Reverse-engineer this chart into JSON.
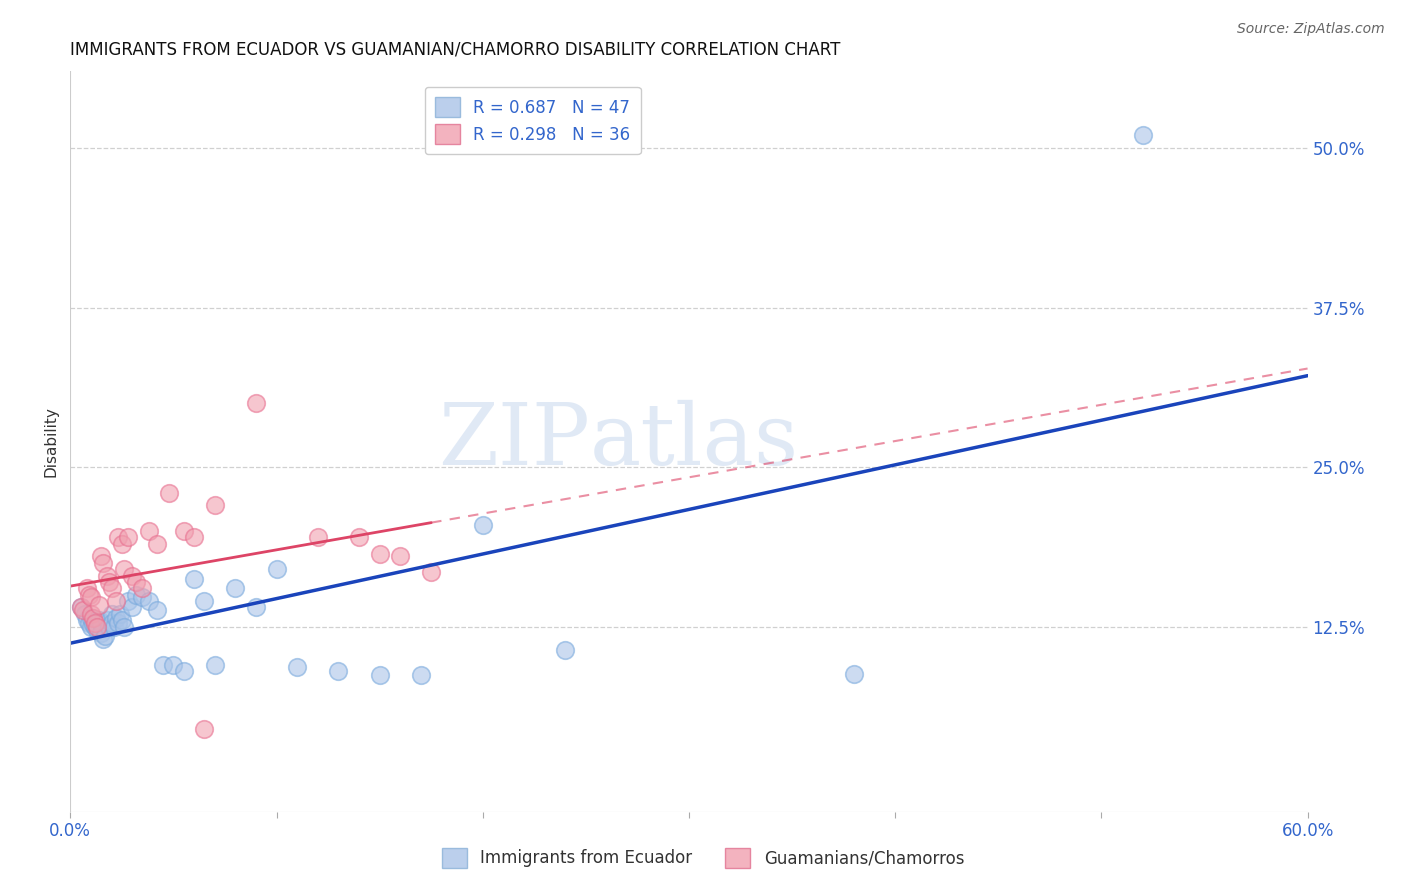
{
  "title": "IMMIGRANTS FROM ECUADOR VS GUAMANIAN/CHAMORRO DISABILITY CORRELATION CHART",
  "source": "Source: ZipAtlas.com",
  "ylabel": "Disability",
  "xlim": [
    0.0,
    0.6
  ],
  "ylim": [
    -0.02,
    0.56
  ],
  "xticks": [
    0.0,
    0.1,
    0.2,
    0.3,
    0.4,
    0.5,
    0.6
  ],
  "xticklabels": [
    "0.0%",
    "",
    "",
    "",
    "",
    "",
    "60.0%"
  ],
  "ytick_positions": [
    0.125,
    0.25,
    0.375,
    0.5
  ],
  "ytick_labels": [
    "12.5%",
    "25.0%",
    "37.5%",
    "50.0%"
  ],
  "grid_color": "#d0d0d0",
  "background_color": "#ffffff",
  "blue_R": 0.687,
  "blue_N": 47,
  "pink_R": 0.298,
  "pink_N": 36,
  "blue_color": "#aac4e8",
  "pink_color": "#f0a0b0",
  "blue_edge_color": "#7aaadd",
  "pink_edge_color": "#e87090",
  "blue_line_color": "#1a44bb",
  "pink_line_color": "#dd4466",
  "legend_label_blue": "Immigrants from Ecuador",
  "legend_label_pink": "Guamanians/Chamorros",
  "watermark": "ZIPatlas",
  "blue_x": [
    0.005,
    0.007,
    0.008,
    0.009,
    0.01,
    0.01,
    0.011,
    0.012,
    0.013,
    0.014,
    0.015,
    0.015,
    0.016,
    0.017,
    0.018,
    0.019,
    0.02,
    0.02,
    0.021,
    0.022,
    0.023,
    0.024,
    0.025,
    0.026,
    0.028,
    0.03,
    0.032,
    0.035,
    0.038,
    0.042,
    0.045,
    0.05,
    0.055,
    0.06,
    0.065,
    0.07,
    0.08,
    0.09,
    0.1,
    0.11,
    0.13,
    0.15,
    0.17,
    0.2,
    0.24,
    0.38,
    0.52
  ],
  "blue_y": [
    0.14,
    0.135,
    0.13,
    0.128,
    0.125,
    0.132,
    0.127,
    0.125,
    0.122,
    0.13,
    0.128,
    0.12,
    0.115,
    0.118,
    0.13,
    0.125,
    0.135,
    0.128,
    0.125,
    0.132,
    0.128,
    0.135,
    0.13,
    0.125,
    0.145,
    0.14,
    0.15,
    0.148,
    0.145,
    0.138,
    0.095,
    0.095,
    0.09,
    0.162,
    0.145,
    0.095,
    0.155,
    0.14,
    0.17,
    0.093,
    0.09,
    0.087,
    0.087,
    0.205,
    0.107,
    0.088,
    0.51
  ],
  "pink_x": [
    0.005,
    0.006,
    0.008,
    0.009,
    0.01,
    0.01,
    0.011,
    0.012,
    0.013,
    0.014,
    0.015,
    0.016,
    0.018,
    0.019,
    0.02,
    0.022,
    0.023,
    0.025,
    0.026,
    0.028,
    0.03,
    0.032,
    0.035,
    0.038,
    0.042,
    0.048,
    0.055,
    0.06,
    0.065,
    0.07,
    0.09,
    0.12,
    0.14,
    0.15,
    0.16,
    0.175
  ],
  "pink_y": [
    0.14,
    0.138,
    0.155,
    0.15,
    0.148,
    0.135,
    0.132,
    0.128,
    0.125,
    0.142,
    0.18,
    0.175,
    0.165,
    0.16,
    0.155,
    0.145,
    0.195,
    0.19,
    0.17,
    0.195,
    0.165,
    0.16,
    0.155,
    0.2,
    0.19,
    0.23,
    0.2,
    0.195,
    0.045,
    0.22,
    0.3,
    0.195,
    0.195,
    0.182,
    0.18,
    0.168
  ]
}
